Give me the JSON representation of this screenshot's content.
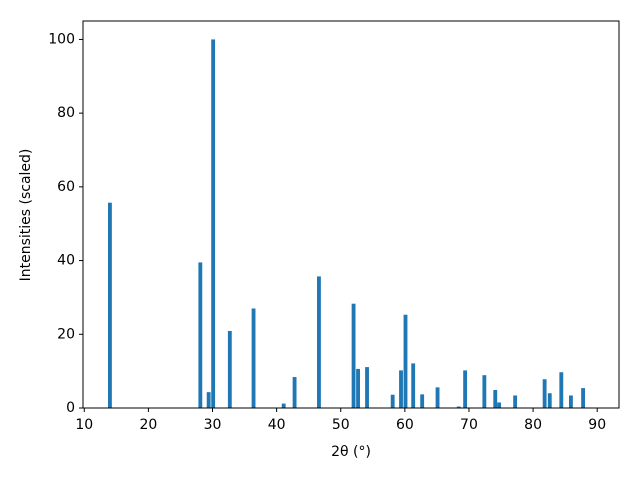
{
  "chart_data": {
    "type": "bar",
    "xlabel": "2θ (°)",
    "ylabel": "Intensities (scaled)",
    "x": [
      14.0,
      28.1,
      29.4,
      30.1,
      32.7,
      36.4,
      41.1,
      42.8,
      46.6,
      52.0,
      52.7,
      54.1,
      58.1,
      59.4,
      60.1,
      61.3,
      62.7,
      65.1,
      68.4,
      69.4,
      72.4,
      74.1,
      74.7,
      77.2,
      81.8,
      82.6,
      84.4,
      85.9,
      87.8
    ],
    "values": [
      55.7,
      39.5,
      4.3,
      100,
      20.9,
      27.0,
      1.2,
      8.4,
      35.7,
      28.3,
      10.6,
      11.1,
      3.6,
      10.2,
      25.3,
      12.1,
      3.7,
      5.6,
      0.4,
      10.2,
      8.9,
      4.9,
      1.5,
      3.4,
      7.8,
      4.0,
      9.7,
      3.4,
      5.4
    ],
    "color": "#1f77b4",
    "xlim": [
      9.8,
      93.4
    ],
    "xticks": [
      10,
      20,
      30,
      40,
      50,
      60,
      70,
      80,
      90
    ],
    "ylim": [
      0,
      105
    ],
    "yticks": [
      0,
      20,
      40,
      60,
      80,
      100
    ]
  }
}
